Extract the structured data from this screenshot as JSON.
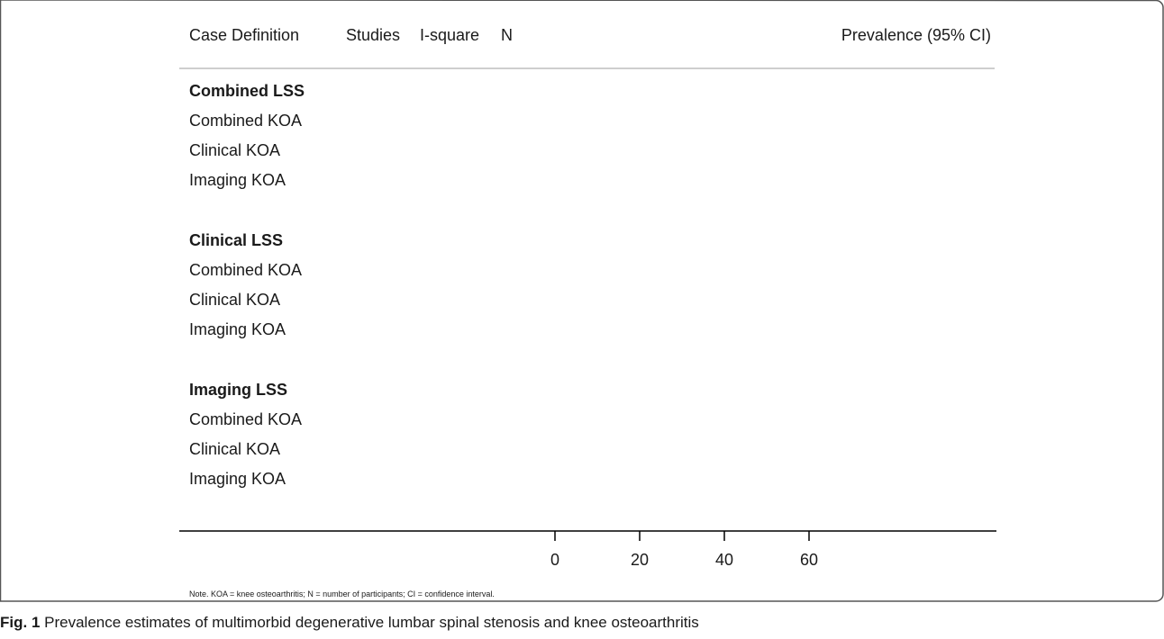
{
  "chart_data": {
    "type": "forest",
    "title": "",
    "columns": {
      "case_definition": "Case Definition",
      "studies": "Studies",
      "i_square": "I-square",
      "n": "N",
      "prevalence": "Prevalence (95% CI)"
    },
    "groups": [
      {
        "name": "Combined LSS",
        "rows": [
          {
            "label": "Combined KOA"
          },
          {
            "label": "Clinical KOA"
          },
          {
            "label": "Imaging KOA"
          }
        ]
      },
      {
        "name": "Clinical LSS",
        "rows": [
          {
            "label": "Combined KOA"
          },
          {
            "label": "Clinical KOA"
          },
          {
            "label": "Imaging KOA"
          }
        ]
      },
      {
        "name": "Imaging LSS",
        "rows": [
          {
            "label": "Combined KOA"
          },
          {
            "label": "Clinical KOA"
          },
          {
            "label": "Imaging KOA"
          }
        ]
      }
    ],
    "x_ticks": [
      0,
      20,
      40,
      60
    ],
    "xlim": [
      -90,
      100
    ],
    "note": "Note. KOA = knee osteoarthritis; N = number of participants; CI = confidence interval."
  },
  "caption": {
    "fig_label": "Fig. 1",
    "text": " Prevalence estimates of multimorbid degenerative lumbar spinal stenosis and knee osteoarthritis"
  }
}
